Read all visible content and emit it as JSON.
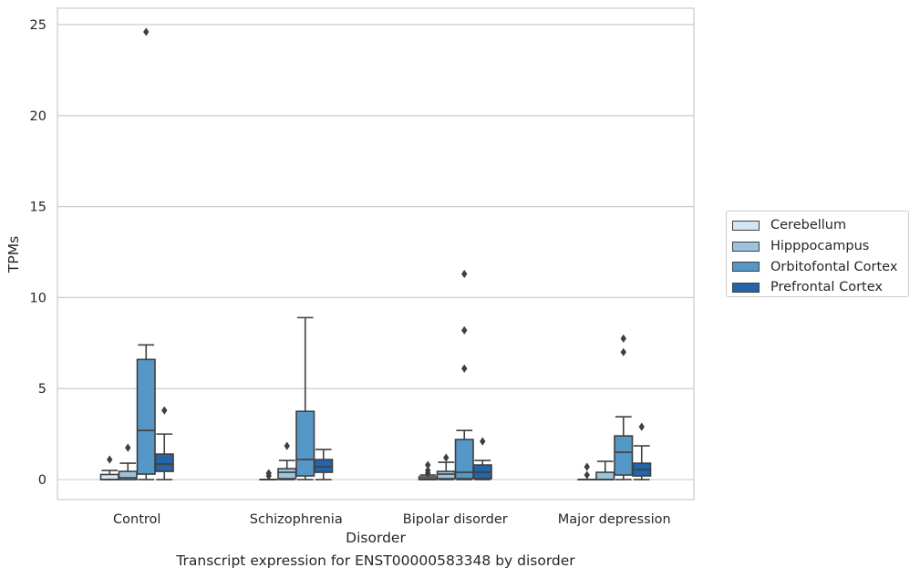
{
  "caption": "Transcript expression for ENST00000583348 by disorder",
  "chart_data": {
    "type": "box",
    "title": "",
    "xlabel": "Disorder",
    "ylabel": "TPMs",
    "ylim": [
      -1.1,
      25.9
    ],
    "yticks": [
      0,
      5,
      10,
      15,
      20,
      25
    ],
    "grid": "y",
    "legend_position": "outside-right",
    "categories": [
      "Control",
      "Schizophrenia",
      "Bipolar disorder",
      "Major depression"
    ],
    "series": [
      {
        "name": "Cerebellum",
        "color": "#d6e5f2",
        "boxes": [
          {
            "whislo": 0,
            "q1": 0,
            "med": 0,
            "q3": 0.28,
            "whishi": 0.5,
            "fliers": [
              1.1
            ]
          },
          {
            "whislo": 0,
            "q1": 0,
            "med": 0,
            "q3": 0,
            "whishi": 0,
            "fliers": [
              0.2,
              0.35
            ]
          },
          {
            "whislo": 0,
            "q1": 0,
            "med": 0.05,
            "q3": 0.15,
            "whishi": 0.25,
            "fliers": [
              0.35,
              0.5,
              0.8
            ]
          },
          {
            "whislo": 0,
            "q1": 0,
            "med": 0,
            "q3": 0,
            "whishi": 0,
            "fliers": [
              0.25,
              0.7
            ]
          }
        ]
      },
      {
        "name": "Hipppocampus",
        "color": "#9bc3de",
        "boxes": [
          {
            "whislo": 0,
            "q1": 0,
            "med": 0.1,
            "q3": 0.45,
            "whishi": 0.9,
            "fliers": [
              1.75
            ]
          },
          {
            "whislo": 0,
            "q1": 0.05,
            "med": 0.4,
            "q3": 0.6,
            "whishi": 1.05,
            "fliers": [
              1.85
            ]
          },
          {
            "whislo": 0,
            "q1": 0.05,
            "med": 0.3,
            "q3": 0.45,
            "whishi": 0.95,
            "fliers": [
              1.2
            ]
          },
          {
            "whislo": 0,
            "q1": 0,
            "med": 0,
            "q3": 0.4,
            "whishi": 1.0,
            "fliers": []
          }
        ]
      },
      {
        "name": "Orbitofontal Cortex",
        "color": "#5597c7",
        "boxes": [
          {
            "whislo": 0,
            "q1": 0.3,
            "med": 2.7,
            "q3": 6.6,
            "whishi": 7.4,
            "fliers": [
              24.6
            ]
          },
          {
            "whislo": 0,
            "q1": 0.2,
            "med": 1.1,
            "q3": 3.75,
            "whishi": 8.9,
            "fliers": []
          },
          {
            "whislo": 0,
            "q1": 0.05,
            "med": 0.4,
            "q3": 2.2,
            "whishi": 2.7,
            "fliers": [
              6.1,
              8.2,
              11.3
            ]
          },
          {
            "whislo": 0,
            "q1": 0.25,
            "med": 1.5,
            "q3": 2.4,
            "whishi": 3.45,
            "fliers": [
              7.0,
              7.75
            ]
          }
        ]
      },
      {
        "name": "Prefrontal Cortex",
        "color": "#2464a8",
        "boxes": [
          {
            "whislo": 0,
            "q1": 0.45,
            "med": 0.85,
            "q3": 1.4,
            "whishi": 2.5,
            "fliers": [
              3.8
            ]
          },
          {
            "whislo": 0,
            "q1": 0.4,
            "med": 0.7,
            "q3": 1.1,
            "whishi": 1.65,
            "fliers": []
          },
          {
            "whislo": 0,
            "q1": 0.05,
            "med": 0.4,
            "q3": 0.8,
            "whishi": 1.05,
            "fliers": [
              2.1
            ]
          },
          {
            "whislo": 0,
            "q1": 0.2,
            "med": 0.55,
            "q3": 0.9,
            "whishi": 1.85,
            "fliers": [
              2.9
            ]
          }
        ]
      }
    ]
  }
}
